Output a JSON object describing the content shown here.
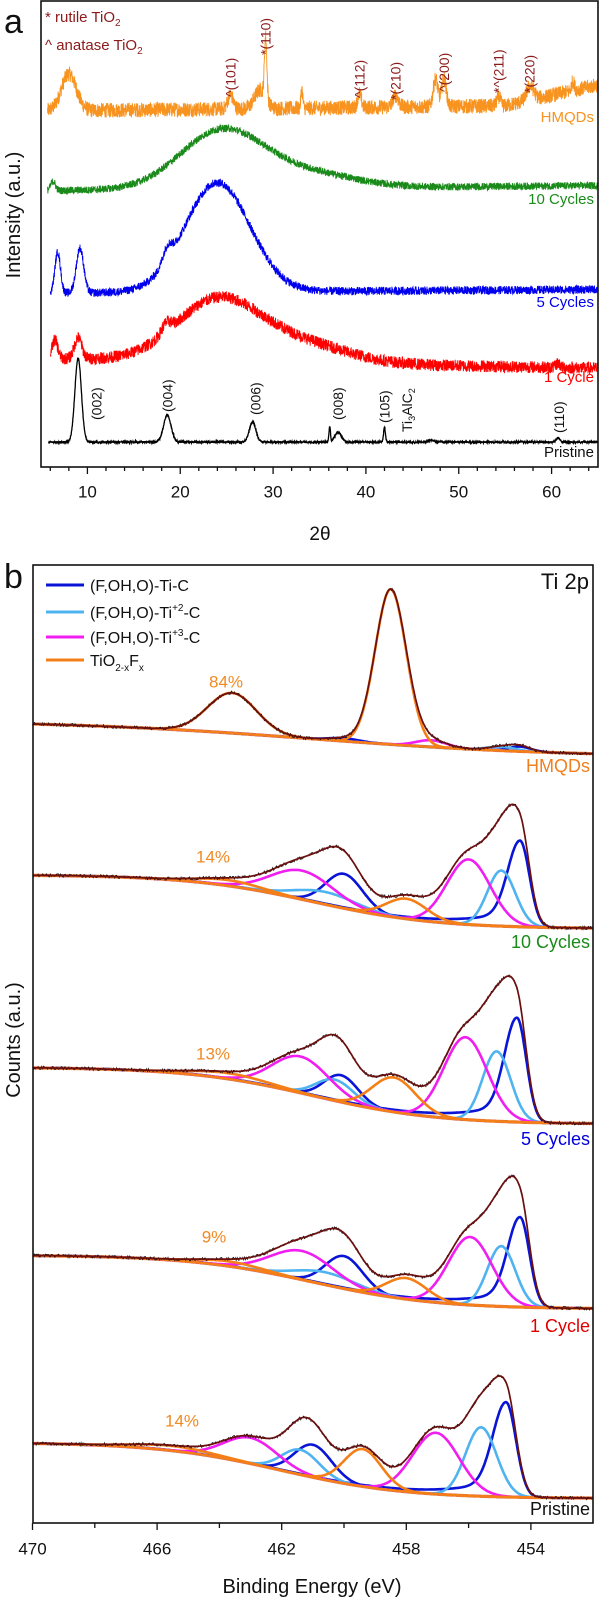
{
  "figure": {
    "panel_a_label": "a",
    "panel_b_label": "b"
  },
  "chart_data": [
    {
      "type": "line",
      "panel": "a",
      "xlabel": "2θ",
      "ylabel": "Intensity (a.u.)",
      "xlim": [
        5,
        65
      ],
      "xticks": [
        10,
        20,
        30,
        40,
        50,
        60
      ],
      "grid": false,
      "notes": [
        {
          "symbol": "*",
          "text": "rutile TiO",
          "sub": "2"
        },
        {
          "symbol": "^",
          "text": "anatase TiO",
          "sub": "2"
        }
      ],
      "notes_color": "#8b1a1a",
      "series": [
        {
          "name": "HMQDs",
          "color": "#f7931e",
          "x_start": 5.7,
          "baseline": [
            [
              5.7,
              76.4
            ],
            [
              55,
              77.5
            ],
            [
              65,
              82
            ]
          ],
          "peaks": [
            {
              "center": 8.0,
              "height": 7.9,
              "sigma": 0.8
            },
            {
              "center": 25.4,
              "height": 3,
              "sigma": 0.3
            },
            {
              "center": 28.6,
              "height": 4,
              "sigma": 0.6
            },
            {
              "center": 29.2,
              "height": 13,
              "sigma": 0.13
            },
            {
              "center": 33.1,
              "height": 4,
              "sigma": 0.1
            },
            {
              "center": 39.3,
              "height": 3,
              "sigma": 0.2
            },
            {
              "center": 43.2,
              "height": 2.5,
              "sigma": 0.3
            },
            {
              "center": 47.5,
              "height": 6,
              "sigma": 0.25
            },
            {
              "center": 48.4,
              "height": 6,
              "sigma": 0.25
            },
            {
              "center": 54.3,
              "height": 2,
              "sigma": 0.2
            },
            {
              "center": 57.7,
              "height": 3,
              "sigma": 0.4
            },
            {
              "center": 62.3,
              "height": 2,
              "sigma": 0.15
            }
          ]
        },
        {
          "name": "10 Cycles",
          "color": "#1a8a1a",
          "x_start": 5.7,
          "baseline": [
            [
              5.7,
              59.3
            ],
            [
              65,
              60.4
            ]
          ],
          "peaks": [
            {
              "center": 6.3,
              "height": 2,
              "sigma": 0.25
            },
            {
              "center": 24.5,
              "height": 12.5,
              "sigma": 4.5
            },
            {
              "center": 34,
              "height": 3,
              "sigma": 5
            }
          ]
        },
        {
          "name": "5 Cycles",
          "color": "#0000ee",
          "x_start": 6.0,
          "baseline": [
            [
              6.0,
              37.3
            ],
            [
              65,
              38.1
            ]
          ],
          "peaks": [
            {
              "center": 6.8,
              "height": 8.8,
              "sigma": 0.3
            },
            {
              "center": 9.2,
              "height": 9.6,
              "sigma": 0.4
            },
            {
              "center": 18.6,
              "height": 3,
              "sigma": 0.5
            },
            {
              "center": 24.0,
              "height": 23.5,
              "sigma": 3.5
            }
          ]
        },
        {
          "name": "1 Cycle",
          "color": "#ff0000",
          "x_start": 6.0,
          "baseline": [
            [
              6.0,
              23.3
            ],
            [
              65,
              21.2
            ]
          ],
          "peaks": [
            {
              "center": 6.5,
              "height": 4,
              "sigma": 0.3
            },
            {
              "center": 9.0,
              "height": 4.5,
              "sigma": 0.4
            },
            {
              "center": 18.5,
              "height": 2,
              "sigma": 0.5
            },
            {
              "center": 24.0,
              "height": 13,
              "sigma": 4.5
            },
            {
              "center": 33,
              "height": 4,
              "sigma": 5
            },
            {
              "center": 60.7,
              "height": 1,
              "sigma": 0.2
            }
          ]
        },
        {
          "name": "Pristine",
          "color": "#000000",
          "x_start": 5.8,
          "baseline": [
            [
              5.8,
              5.35
            ],
            [
              65,
              5.35
            ]
          ],
          "peaks": [
            {
              "center": 9.0,
              "height": 18,
              "sigma": 0.35
            },
            {
              "center": 18.6,
              "height": 5.8,
              "sigma": 0.4
            },
            {
              "center": 27.8,
              "height": 4.3,
              "sigma": 0.35
            },
            {
              "center": 36.1,
              "height": 3.2,
              "sigma": 0.08
            },
            {
              "center": 37.0,
              "height": 2.1,
              "sigma": 0.35
            },
            {
              "center": 42.0,
              "height": 3.2,
              "sigma": 0.1
            },
            {
              "center": 47.0,
              "height": 0.4,
              "sigma": 0.3
            },
            {
              "center": 60.7,
              "height": 0.9,
              "sigma": 0.2
            }
          ]
        }
      ],
      "peak_labels": [
        {
          "text": "^(101)",
          "series": "HMQDs",
          "two_theta": 25.4
        },
        {
          "text": "*(110)",
          "series": "HMQDs",
          "two_theta": 29.2
        },
        {
          "text": "^(112)",
          "series": "HMQDs",
          "two_theta": 39.3
        },
        {
          "text": "*(210)",
          "series": "HMQDs",
          "two_theta": 43.2
        },
        {
          "text": "^(200)",
          "series": "HMQDs",
          "two_theta": 48.4
        },
        {
          "text": "*^(211)",
          "series": "HMQDs",
          "two_theta": 54.3
        },
        {
          "text": "*(220)",
          "series": "HMQDs",
          "two_theta": 57.6
        },
        {
          "text": "(002)",
          "series": "Pristine",
          "two_theta": 11.0
        },
        {
          "text": "(004)",
          "series": "Pristine",
          "two_theta": 18.6
        },
        {
          "text": "(006)",
          "series": "Pristine",
          "two_theta": 28.1
        },
        {
          "text": "(008)",
          "series": "Pristine",
          "two_theta": 37.0
        },
        {
          "text": "(105)",
          "series": "Pristine",
          "two_theta": 42.0
        },
        {
          "text": "(110)",
          "series": "Pristine",
          "two_theta": 60.8
        }
      ],
      "phase_label": {
        "parts": [
          "Ti",
          "3",
          "AlC",
          "2"
        ],
        "two_theta": 44.5
      },
      "hmqd_label_color": "#8b1a1a"
    },
    {
      "type": "line",
      "panel": "b",
      "title": "Ti 2p",
      "xlabel": "Binding Energy (eV)",
      "ylabel": "Counts (a.u.)",
      "xlim": [
        470,
        452
      ],
      "xticks": [
        470,
        466,
        462,
        458,
        454
      ],
      "grid": false,
      "legend_position": "top-left",
      "components": [
        {
          "key": "ti_c",
          "parts": [
            "(F,OH,O)-Ti",
            "",
            "-C"
          ],
          "color": "#0a14d6"
        },
        {
          "key": "ti2_c",
          "parts": [
            "(F,OH,O)-Ti",
            "+2",
            "-C"
          ],
          "color": "#4fb3f0"
        },
        {
          "key": "ti3_c",
          "parts": [
            "(F,OH,O)-Ti",
            "+3",
            "-C"
          ],
          "color": "#f01ef0"
        },
        {
          "key": "tio2",
          "parts": [
            "TiO",
            "2-x",
            "F",
            "x"
          ],
          "color": "#f57f17"
        }
      ],
      "envelope_color": "#6b0f0f",
      "series": [
        {
          "name": "HMQDs",
          "label_color": "#f07f1f",
          "tio2_fraction": "84%",
          "background": {
            "left": 83.4,
            "right": 80.3,
            "center": 461,
            "width": 4
          },
          "peaks": [
            {
              "c": "ti_c",
              "center": 454.35,
              "height": 0.5,
              "sigma": 0.35
            },
            {
              "c": "ti_c",
              "center": 460.0,
              "height": 0.3,
              "sigma": 0.5
            },
            {
              "c": "ti2_c",
              "center": 454.95,
              "height": 0.4,
              "sigma": 0.45
            },
            {
              "c": "ti3_c",
              "center": 457.2,
              "height": 0.7,
              "sigma": 0.5
            },
            {
              "c": "tio2",
              "center": 458.5,
              "height": 16.2,
              "sigma": 0.5
            },
            {
              "c": "tio2",
              "center": 463.6,
              "height": 4.2,
              "sigma": 0.78
            }
          ]
        },
        {
          "name": "10 Cycles",
          "label_color": "#1a8a1a",
          "tio2_fraction": "14%",
          "background": {
            "left": 67.6,
            "right": 62.1,
            "center": 461,
            "width": 2
          },
          "peaks": [
            {
              "c": "ti_c",
              "center": 454.35,
              "height": 9.0,
              "sigma": 0.3,
              "tail": 0.15
            },
            {
              "c": "ti_c",
              "center": 460.0,
              "height": 3.6,
              "sigma": 0.6
            },
            {
              "c": "ti2_c",
              "center": 454.95,
              "height": 5.8,
              "sigma": 0.45
            },
            {
              "c": "ti2_c",
              "center": 460.6,
              "height": 1.3,
              "sigma": 1.0
            },
            {
              "c": "ti3_c",
              "center": 456.0,
              "height": 6.8,
              "sigma": 0.7
            },
            {
              "c": "ti3_c",
              "center": 461.35,
              "height": 3.0,
              "sigma": 1.0
            },
            {
              "c": "tio2",
              "center": 458.0,
              "height": 2.1,
              "sigma": 0.65
            },
            {
              "c": "tio2",
              "center": 463.7,
              "height": 0.6,
              "sigma": 1.0
            }
          ]
        },
        {
          "name": "5 Cycles",
          "label_color": "#0000dd",
          "tio2_fraction": "13%",
          "background": {
            "left": 47.5,
            "right": 41.7,
            "center": 461,
            "width": 2
          },
          "peaks": [
            {
              "c": "ti_c",
              "center": 454.45,
              "height": 10.9,
              "sigma": 0.3,
              "tail": 0.15
            },
            {
              "c": "ti_c",
              "center": 460.1,
              "height": 2.8,
              "sigma": 0.55
            },
            {
              "c": "ti2_c",
              "center": 455.1,
              "height": 7.3,
              "sigma": 0.45
            },
            {
              "c": "ti2_c",
              "center": 460.3,
              "height": 2.2,
              "sigma": 0.6
            },
            {
              "c": "ti3_c",
              "center": 456.1,
              "height": 8.6,
              "sigma": 0.7
            },
            {
              "c": "ti3_c",
              "center": 461.4,
              "height": 3.8,
              "sigma": 0.9
            },
            {
              "c": "tio2",
              "center": 458.4,
              "height": 3.6,
              "sigma": 0.7
            },
            {
              "c": "tio2",
              "center": 463.7,
              "height": 0.6,
              "sigma": 1.2
            }
          ]
        },
        {
          "name": "1 Cycle",
          "label_color": "#e00000",
          "tio2_fraction": "9%",
          "background": {
            "left": 27.9,
            "right": 22.4,
            "center": 461,
            "width": 2
          },
          "peaks": [
            {
              "c": "ti_c",
              "center": 454.35,
              "height": 9.4,
              "sigma": 0.3,
              "tail": 0.15
            },
            {
              "c": "ti_c",
              "center": 460.0,
              "height": 3.4,
              "sigma": 0.6
            },
            {
              "c": "ti2_c",
              "center": 454.95,
              "height": 6.3,
              "sigma": 0.45
            },
            {
              "c": "ti2_c",
              "center": 460.6,
              "height": 1.3,
              "sigma": 1.0
            },
            {
              "c": "ti3_c",
              "center": 455.95,
              "height": 7.1,
              "sigma": 0.7
            },
            {
              "c": "ti3_c",
              "center": 461.35,
              "height": 3.0,
              "sigma": 1.0
            },
            {
              "c": "tio2",
              "center": 458.0,
              "height": 2.2,
              "sigma": 0.65
            },
            {
              "c": "tio2",
              "center": 463.7,
              "height": 0.5,
              "sigma": 1.0
            }
          ]
        },
        {
          "name": "Pristine",
          "label_color": "#111111",
          "tio2_fraction": "14%",
          "background": {
            "left": 8.3,
            "right": 2.6,
            "center": 462,
            "width": 2
          },
          "peaks": [
            {
              "c": "ti_c",
              "center": 454.8,
              "height": 9.9,
              "sigma": 0.32,
              "tail": 0.15
            },
            {
              "c": "ti_c",
              "center": 461.0,
              "height": 3.4,
              "sigma": 0.6
            },
            {
              "c": "ti2_c",
              "center": 455.6,
              "height": 7.2,
              "sigma": 0.5
            },
            {
              "c": "ti2_c",
              "center": 461.4,
              "height": 2.6,
              "sigma": 0.6
            },
            {
              "c": "ti3_c",
              "center": 457.05,
              "height": 6.4,
              "sigma": 0.75
            },
            {
              "c": "ti3_c",
              "center": 463.0,
              "height": 2.7,
              "sigma": 0.85
            },
            {
              "c": "tio2",
              "center": 459.4,
              "height": 3.9,
              "sigma": 0.6
            },
            {
              "c": "tio2",
              "center": 465.5,
              "height": 0.5,
              "sigma": 1.2
            }
          ]
        }
      ]
    }
  ]
}
